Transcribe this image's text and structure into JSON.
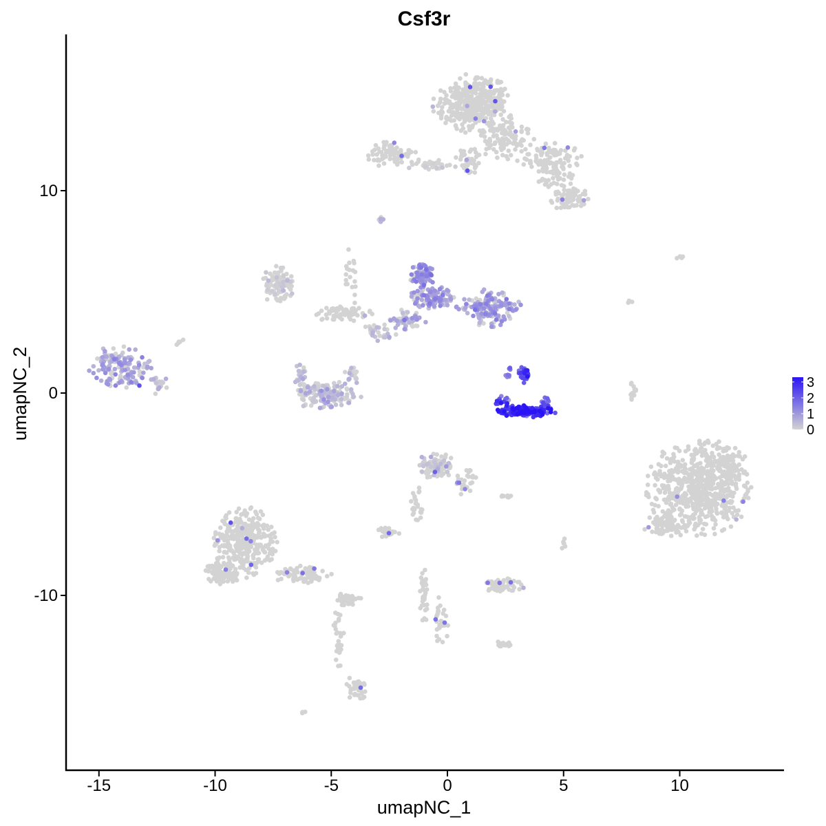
{
  "chart_data": {
    "type": "scatter",
    "title": "Csf3r",
    "xlabel": "umapNC_1",
    "ylabel": "umapNC_2",
    "xlim": [
      -16.3,
      14.5
    ],
    "ylim": [
      -17.5,
      17.5
    ],
    "x_ticks": [
      -15,
      -10,
      -5,
      0,
      5,
      10
    ],
    "x_tick_labels": [
      "-15",
      "-10",
      "-5",
      "0",
      "5",
      "10"
    ],
    "y_ticks": [
      -10,
      0,
      10
    ],
    "y_tick_labels": [
      "-10",
      "0",
      "10"
    ],
    "grid": false,
    "legend_position": "right",
    "color_low": "#d3d3d3",
    "color_high": "#2a14f5",
    "legend": {
      "title": "",
      "ticks": [
        0,
        1,
        2,
        3
      ],
      "tick_labels": [
        "0",
        "1",
        "2",
        "3"
      ],
      "max": 3.3
    },
    "clusters": [
      {
        "cx": 1.1,
        "cy": 14.3,
        "rx": 1.5,
        "ry": 1.3,
        "n": 380,
        "expr": 0.0
      },
      {
        "cx": 2.5,
        "cy": 12.6,
        "rx": 1.1,
        "ry": 0.9,
        "n": 100,
        "expr": 0.0
      },
      {
        "cx": 4.3,
        "cy": 11.6,
        "rx": 1.3,
        "ry": 0.7,
        "n": 90,
        "expr": 0.0
      },
      {
        "cx": 5.3,
        "cy": 9.6,
        "rx": 0.8,
        "ry": 0.5,
        "n": 70,
        "expr": 0.0
      },
      {
        "cx": 4.6,
        "cy": 10.6,
        "rx": 0.7,
        "ry": 0.6,
        "n": 40,
        "expr": 0.0
      },
      {
        "cx": 0.9,
        "cy": 11.5,
        "rx": 0.5,
        "ry": 0.6,
        "n": 40,
        "expr": 0.0
      },
      {
        "cx": -2.4,
        "cy": 11.8,
        "rx": 0.9,
        "ry": 0.6,
        "n": 80,
        "expr": 0.0
      },
      {
        "cx": -0.7,
        "cy": 11.3,
        "rx": 1.0,
        "ry": 0.25,
        "n": 35,
        "expr": 0.05
      },
      {
        "cx": -7.3,
        "cy": 5.4,
        "rx": 0.6,
        "ry": 0.9,
        "n": 90,
        "expr": 0.05
      },
      {
        "cx": -4.6,
        "cy": 3.9,
        "rx": 1.2,
        "ry": 0.35,
        "n": 60,
        "expr": 0.0
      },
      {
        "cx": -4.2,
        "cy": 5.5,
        "rx": 0.3,
        "ry": 1.6,
        "n": 25,
        "expr": 0.0
      },
      {
        "cx": -2.9,
        "cy": 8.6,
        "rx": 0.2,
        "ry": 0.2,
        "n": 6,
        "expr": 0.8
      },
      {
        "cx": -1.1,
        "cy": 5.8,
        "rx": 0.5,
        "ry": 0.5,
        "n": 90,
        "expr": 1.05
      },
      {
        "cx": -0.6,
        "cy": 4.7,
        "rx": 0.9,
        "ry": 0.5,
        "n": 110,
        "expr": 0.9
      },
      {
        "cx": 1.8,
        "cy": 4.2,
        "rx": 1.2,
        "ry": 0.8,
        "n": 170,
        "expr": 0.85
      },
      {
        "cx": -1.7,
        "cy": 3.6,
        "rx": 0.7,
        "ry": 0.5,
        "n": 55,
        "expr": 0.55
      },
      {
        "cx": -3.0,
        "cy": 3.0,
        "rx": 0.7,
        "ry": 0.4,
        "n": 30,
        "expr": 0.25
      },
      {
        "cx": -14.1,
        "cy": 1.2,
        "rx": 1.2,
        "ry": 1.0,
        "n": 150,
        "expr": 0.7
      },
      {
        "cx": -12.4,
        "cy": 0.4,
        "rx": 0.4,
        "ry": 0.4,
        "n": 25,
        "expr": 0.3
      },
      {
        "cx": -5.2,
        "cy": -0.1,
        "rx": 1.3,
        "ry": 0.6,
        "n": 150,
        "expr": 0.35
      },
      {
        "cx": -6.3,
        "cy": 0.8,
        "rx": 0.3,
        "ry": 0.6,
        "n": 25,
        "expr": 0.3
      },
      {
        "cx": -4.1,
        "cy": 0.9,
        "rx": 0.3,
        "ry": 0.5,
        "n": 20,
        "expr": 0.3
      },
      {
        "cx": 3.4,
        "cy": -0.9,
        "rx": 1.1,
        "ry": 0.25,
        "n": 140,
        "expr": 2.85
      },
      {
        "cx": 2.4,
        "cy": -0.4,
        "rx": 0.35,
        "ry": 0.25,
        "n": 15,
        "expr": 2.2
      },
      {
        "cx": 4.2,
        "cy": -0.5,
        "rx": 0.2,
        "ry": 0.25,
        "n": 12,
        "expr": 2.2
      },
      {
        "cx": 3.3,
        "cy": 0.9,
        "rx": 0.25,
        "ry": 0.45,
        "n": 30,
        "expr": 2.0
      },
      {
        "cx": 2.6,
        "cy": 1.0,
        "rx": 0.15,
        "ry": 0.3,
        "n": 8,
        "expr": 1.5
      },
      {
        "cx": 10.8,
        "cy": -4.7,
        "rx": 2.0,
        "ry": 2.1,
        "n": 650,
        "expr": 0.0
      },
      {
        "cx": 9.3,
        "cy": -6.5,
        "rx": 0.8,
        "ry": 0.6,
        "n": 60,
        "expr": 0.0
      },
      {
        "cx": 12.2,
        "cy": -3.6,
        "rx": 0.6,
        "ry": 0.9,
        "n": 50,
        "expr": 0.0
      },
      {
        "cx": 8.0,
        "cy": 0.1,
        "rx": 0.12,
        "ry": 0.5,
        "n": 12,
        "expr": 0.0
      },
      {
        "cx": -0.5,
        "cy": -3.6,
        "rx": 0.7,
        "ry": 0.6,
        "n": 110,
        "expr": 0.05
      },
      {
        "cx": 0.8,
        "cy": -4.4,
        "rx": 0.4,
        "ry": 0.6,
        "n": 30,
        "expr": 0.0
      },
      {
        "cx": -1.3,
        "cy": -5.5,
        "rx": 0.25,
        "ry": 0.8,
        "n": 25,
        "expr": 0.0
      },
      {
        "cx": -2.6,
        "cy": -6.9,
        "rx": 0.5,
        "ry": 0.25,
        "n": 30,
        "expr": 0.0
      },
      {
        "cx": -8.7,
        "cy": -7.4,
        "rx": 1.2,
        "ry": 1.5,
        "n": 340,
        "expr": 0.0
      },
      {
        "cx": -9.7,
        "cy": -8.9,
        "rx": 0.7,
        "ry": 0.5,
        "n": 90,
        "expr": 0.0
      },
      {
        "cx": -6.2,
        "cy": -9.0,
        "rx": 1.1,
        "ry": 0.4,
        "n": 80,
        "expr": 0.0
      },
      {
        "cx": -4.3,
        "cy": -10.2,
        "rx": 0.5,
        "ry": 0.3,
        "n": 40,
        "expr": 0.0
      },
      {
        "cx": -4.7,
        "cy": -12.2,
        "rx": 0.25,
        "ry": 1.4,
        "n": 30,
        "expr": 0.0
      },
      {
        "cx": -3.9,
        "cy": -14.6,
        "rx": 0.4,
        "ry": 0.6,
        "n": 40,
        "expr": 0.0
      },
      {
        "cx": -1.0,
        "cy": -10.0,
        "rx": 0.2,
        "ry": 1.2,
        "n": 35,
        "expr": 0.0
      },
      {
        "cx": -0.3,
        "cy": -11.3,
        "rx": 0.3,
        "ry": 1.1,
        "n": 30,
        "expr": 0.0
      },
      {
        "cx": 2.4,
        "cy": -9.5,
        "rx": 0.8,
        "ry": 0.3,
        "n": 55,
        "expr": 0.0
      },
      {
        "cx": 2.4,
        "cy": -12.5,
        "rx": 0.4,
        "ry": 0.2,
        "n": 15,
        "expr": 0.0
      },
      {
        "cx": 2.5,
        "cy": -5.1,
        "rx": 0.35,
        "ry": 0.1,
        "n": 8,
        "expr": 0.0
      },
      {
        "cx": 5.0,
        "cy": -7.4,
        "rx": 0.1,
        "ry": 0.3,
        "n": 6,
        "expr": 0.0
      },
      {
        "cx": 9.9,
        "cy": 6.7,
        "rx": 0.25,
        "ry": 0.1,
        "n": 4,
        "expr": 0.0
      },
      {
        "cx": -6.2,
        "cy": -15.8,
        "rx": 0.1,
        "ry": 0.1,
        "n": 3,
        "expr": 0.0
      },
      {
        "cx": -11.5,
        "cy": 2.5,
        "rx": 0.2,
        "ry": 0.2,
        "n": 5,
        "expr": 0.0
      },
      {
        "cx": 7.8,
        "cy": 4.5,
        "rx": 0.15,
        "ry": 0.25,
        "n": 3,
        "expr": 0.0
      }
    ]
  }
}
